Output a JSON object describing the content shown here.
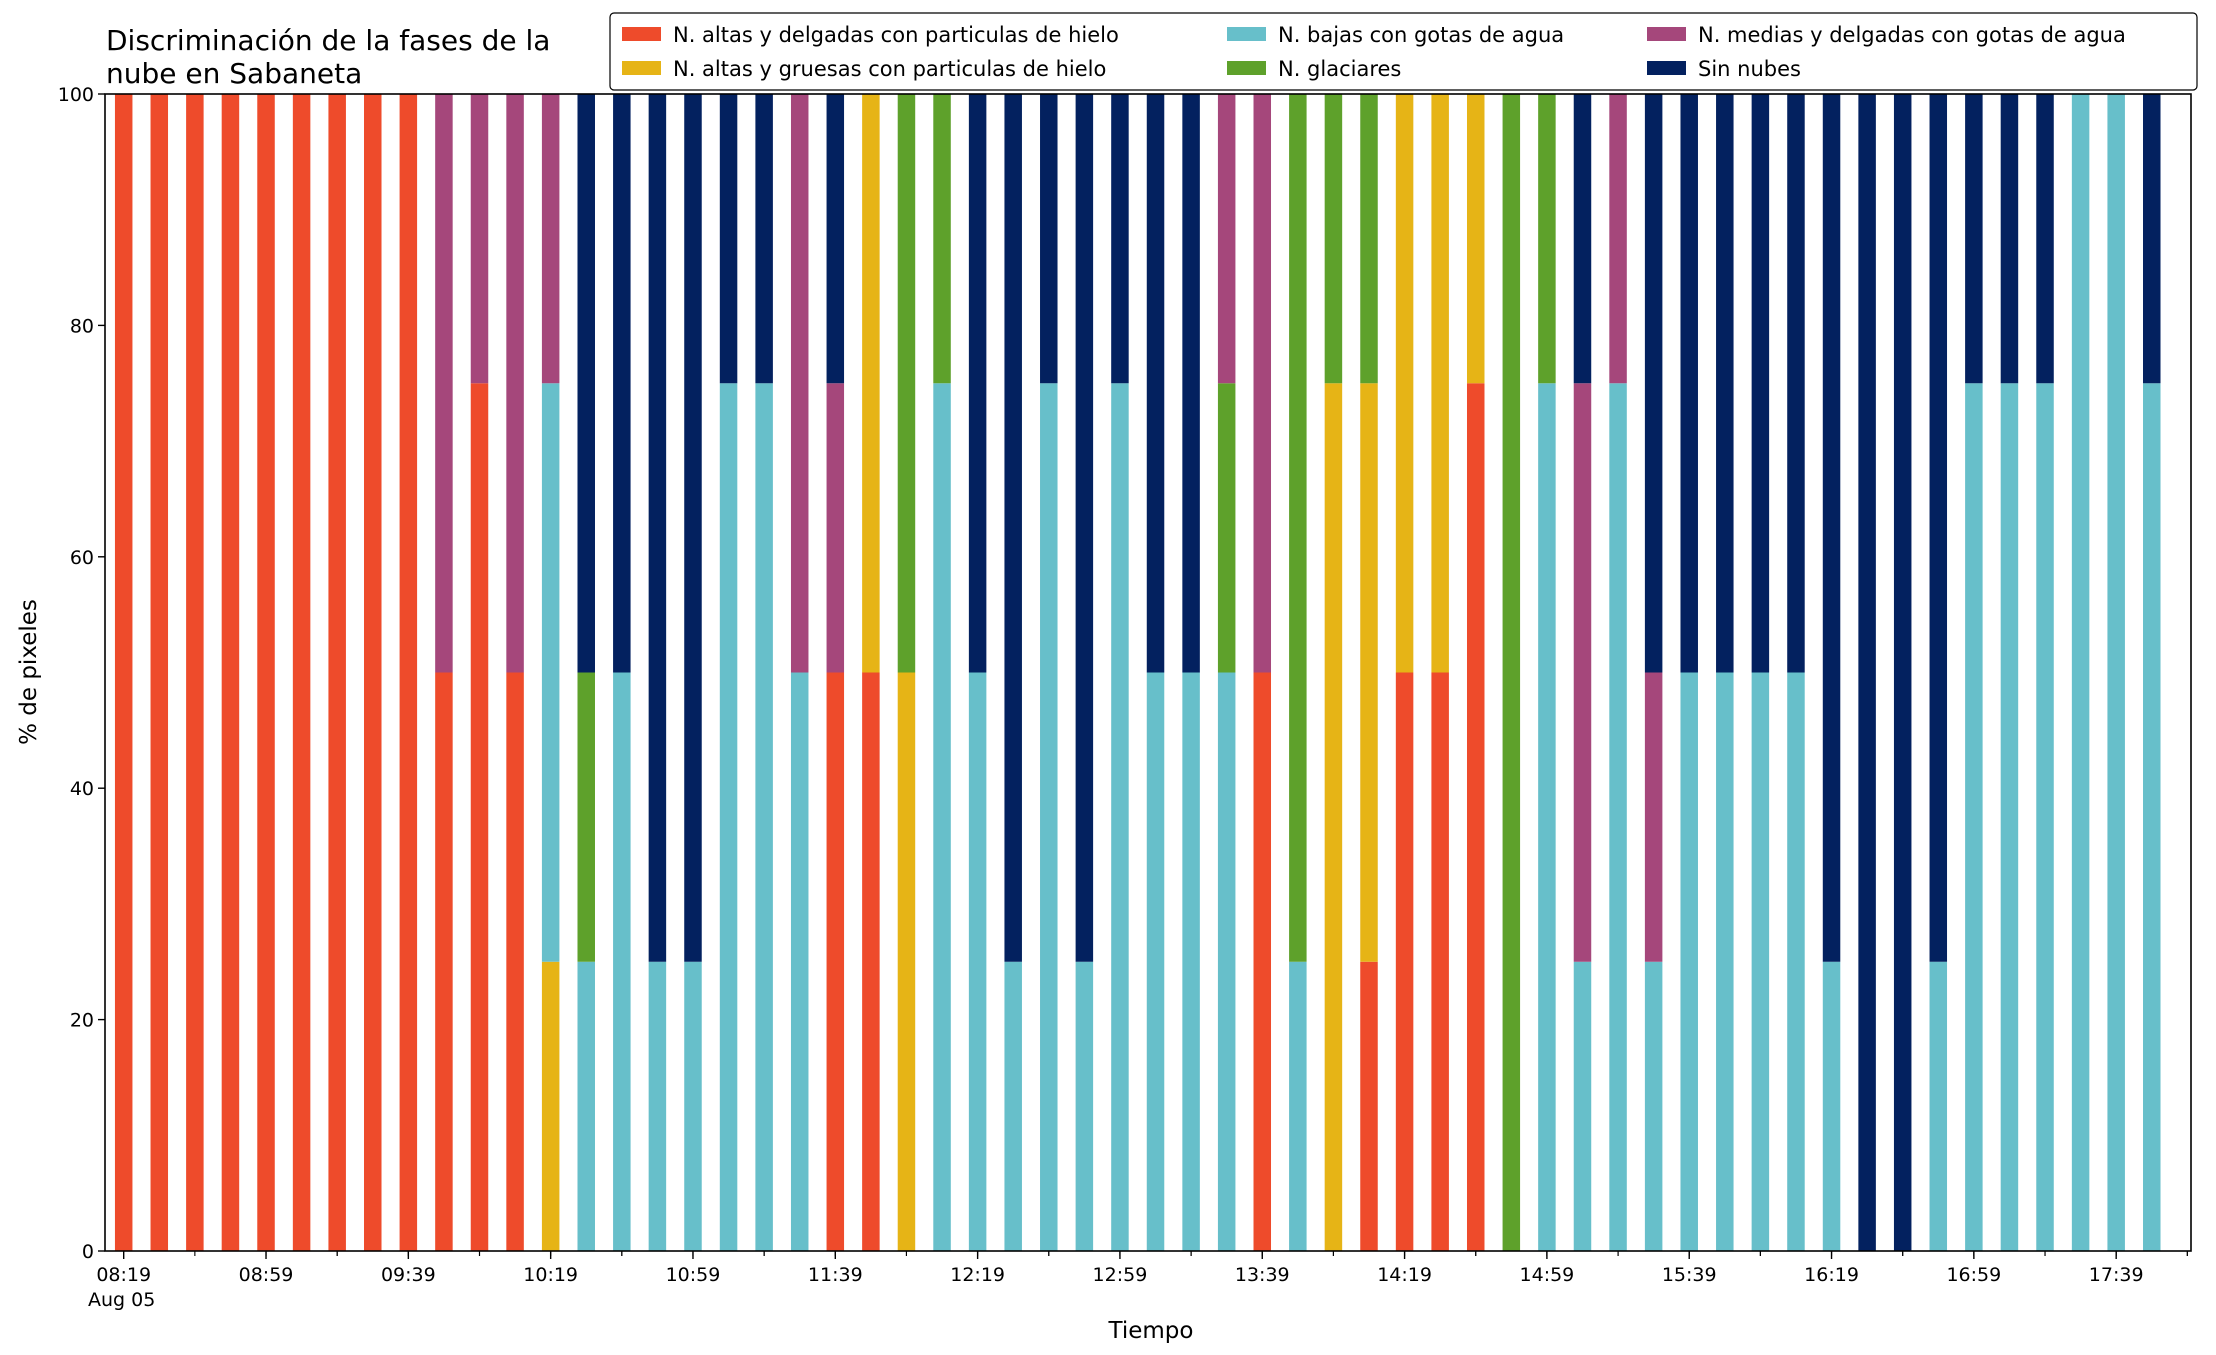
{
  "chart_data": {
    "type": "bar",
    "stacked": true,
    "title_lines": [
      "Discriminación de la fases de la",
      "nube en Sabaneta"
    ],
    "xlabel": "Tiempo",
    "ylabel": "% de pixeles",
    "ylim": [
      0,
      100
    ],
    "yticks": [
      0,
      20,
      40,
      60,
      80,
      100
    ],
    "grid": false,
    "legend_position": "top-right",
    "x_start": "08:19",
    "x_interval_minutes": 10,
    "x_date_label": "Aug 05",
    "x_tick_labels": [
      "08:19",
      "08:59",
      "09:39",
      "10:19",
      "10:59",
      "11:39",
      "12:19",
      "12:59",
      "13:39",
      "14:19",
      "14:59",
      "15:39",
      "16:19",
      "16:59",
      "17:39"
    ],
    "categories": [
      "08:19",
      "08:29",
      "08:39",
      "08:49",
      "08:59",
      "09:09",
      "09:19",
      "09:29",
      "09:39",
      "09:49",
      "09:59",
      "10:09",
      "10:19",
      "10:29",
      "10:39",
      "10:49",
      "10:59",
      "11:09",
      "11:19",
      "11:29",
      "11:39",
      "11:49",
      "11:59",
      "12:09",
      "12:19",
      "12:29",
      "12:39",
      "12:49",
      "12:59",
      "13:09",
      "13:19",
      "13:29",
      "13:39",
      "13:49",
      "13:59",
      "14:09",
      "14:19",
      "14:29",
      "14:39",
      "14:49",
      "14:59",
      "15:09",
      "15:19",
      "15:29",
      "15:39",
      "15:49",
      "15:59",
      "16:09",
      "16:19",
      "16:29",
      "16:39",
      "16:49",
      "16:59",
      "17:09",
      "17:19",
      "17:29",
      "17:39",
      "17:49"
    ],
    "series": [
      {
        "name": "N. altas y delgadas con particulas de hielo",
        "color": "#ee4b2b",
        "values": [
          100,
          100,
          100,
          100,
          100,
          100,
          100,
          100,
          100,
          50,
          75,
          50,
          0,
          0,
          0,
          0,
          0,
          0,
          0,
          0,
          50,
          50,
          0,
          0,
          0,
          0,
          0,
          0,
          0,
          0,
          0,
          0,
          50,
          0,
          0,
          25,
          50,
          50,
          75,
          0,
          0,
          0,
          0,
          0,
          0,
          0,
          0,
          0,
          0,
          0,
          0,
          0,
          0,
          0,
          0,
          0,
          0,
          0
        ]
      },
      {
        "name": "N. altas y gruesas con particulas de hielo",
        "color": "#e6b416",
        "values": [
          0,
          0,
          0,
          0,
          0,
          0,
          0,
          0,
          0,
          0,
          0,
          0,
          25,
          0,
          0,
          0,
          0,
          0,
          0,
          0,
          0,
          50,
          50,
          0,
          0,
          0,
          0,
          0,
          0,
          0,
          0,
          0,
          0,
          0,
          75,
          50,
          50,
          50,
          25,
          0,
          0,
          0,
          0,
          0,
          0,
          0,
          0,
          0,
          0,
          0,
          0,
          0,
          0,
          0,
          0,
          0,
          0,
          0
        ]
      },
      {
        "name": "N. bajas con gotas de agua",
        "color": "#67bfca",
        "values": [
          0,
          0,
          0,
          0,
          0,
          0,
          0,
          0,
          0,
          0,
          0,
          0,
          50,
          25,
          50,
          25,
          25,
          75,
          75,
          50,
          0,
          0,
          0,
          75,
          50,
          25,
          75,
          25,
          75,
          50,
          50,
          50,
          0,
          25,
          0,
          0,
          0,
          0,
          0,
          0,
          75,
          25,
          75,
          25,
          50,
          50,
          50,
          50,
          25,
          0,
          0,
          25,
          75,
          75,
          75,
          100,
          100,
          75
        ]
      },
      {
        "name": "N. glaciares",
        "color": "#5ea12b",
        "values": [
          0,
          0,
          0,
          0,
          0,
          0,
          0,
          0,
          0,
          0,
          0,
          0,
          0,
          25,
          0,
          0,
          0,
          0,
          0,
          0,
          0,
          0,
          50,
          25,
          0,
          0,
          0,
          0,
          0,
          0,
          0,
          25,
          0,
          75,
          25,
          25,
          0,
          0,
          0,
          100,
          25,
          0,
          0,
          0,
          0,
          0,
          0,
          0,
          0,
          0,
          0,
          0,
          0,
          0,
          0,
          0,
          0,
          0
        ]
      },
      {
        "name": "N. medias y delgadas con gotas de agua",
        "color": "#a5477b",
        "values": [
          0,
          0,
          0,
          0,
          0,
          0,
          0,
          0,
          0,
          50,
          25,
          50,
          25,
          0,
          0,
          0,
          0,
          0,
          0,
          50,
          25,
          0,
          0,
          0,
          0,
          0,
          0,
          0,
          0,
          0,
          0,
          25,
          50,
          0,
          0,
          0,
          0,
          0,
          0,
          0,
          0,
          50,
          25,
          25,
          0,
          0,
          0,
          0,
          0,
          0,
          0,
          0,
          0,
          0,
          0,
          0,
          0,
          0
        ]
      },
      {
        "name": "Sin nubes",
        "color": "#03215f",
        "values": [
          0,
          0,
          0,
          0,
          0,
          0,
          0,
          0,
          0,
          0,
          0,
          0,
          0,
          50,
          50,
          75,
          75,
          25,
          25,
          0,
          25,
          0,
          0,
          0,
          50,
          75,
          25,
          75,
          25,
          50,
          50,
          0,
          0,
          0,
          0,
          0,
          0,
          0,
          0,
          0,
          0,
          25,
          0,
          50,
          50,
          50,
          50,
          50,
          75,
          100,
          100,
          75,
          25,
          25,
          25,
          0,
          0,
          25
        ]
      }
    ]
  }
}
